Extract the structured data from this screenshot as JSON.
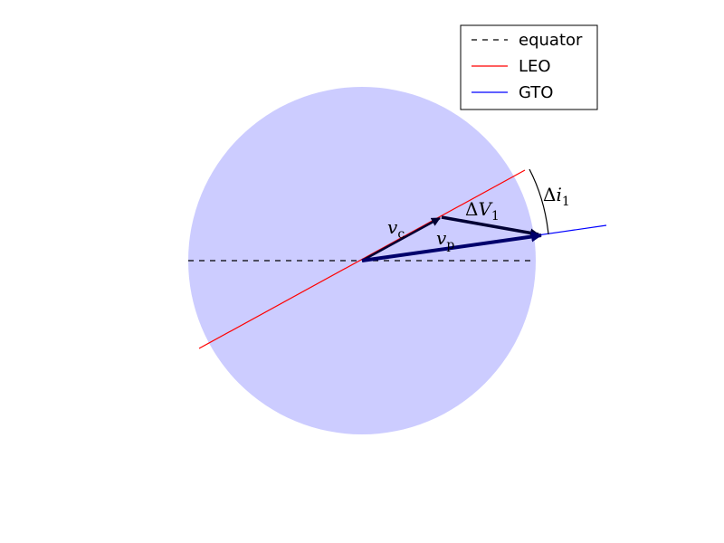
{
  "colors": {
    "earth_fill": "#ccccff",
    "equator": "#000000",
    "leo": "#ff0000",
    "gto": "#0000ff",
    "vector_dark": "#000033",
    "vector_vp": "#00006b"
  },
  "labels": {
    "vc": {
      "main": "v",
      "sub": "c"
    },
    "vp": {
      "main": "v",
      "sub": "p"
    },
    "delta_v": {
      "delta": "Δ",
      "main": "V",
      "sub": "1"
    },
    "delta_i": {
      "delta": "Δ",
      "main": "i",
      "sub": "1"
    }
  },
  "legend": {
    "placement": "top-right",
    "items": [
      {
        "label": "equator",
        "style": "dashed",
        "color_key": "equator"
      },
      {
        "label": "LEO",
        "style": "solid",
        "color_key": "leo"
      },
      {
        "label": "GTO",
        "style": "solid",
        "color_key": "gto"
      }
    ]
  }
}
